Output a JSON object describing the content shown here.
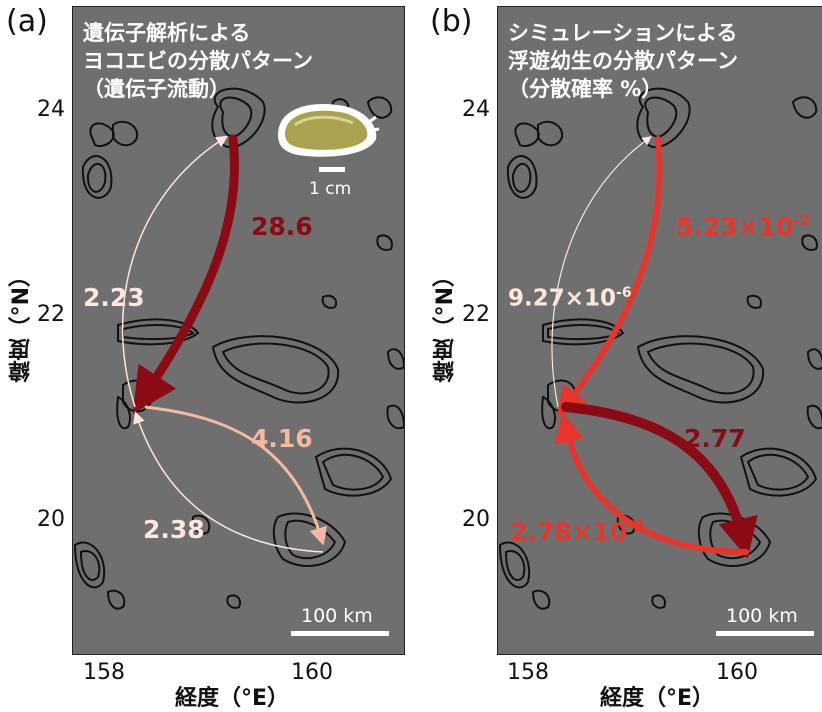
{
  "panel_a": {
    "letter": "(a)",
    "title_lines": [
      "遺伝子解析による",
      "ヨコエビの分散パターン",
      "（遺伝子流動）"
    ],
    "flows": {
      "north_to_south": "28.6",
      "south_to_north": "2.23",
      "mid_to_southeast": "4.16",
      "southeast_to_mid": "2.38"
    },
    "photo_scale_label": "1 cm",
    "scale_label": "100 km",
    "y_ticks": [
      "24",
      "22",
      "20"
    ],
    "x_ticks": [
      "158",
      "160"
    ],
    "ylabel": "緯度（°N）",
    "xlabel": "経度（°E）"
  },
  "panel_b": {
    "letter": "(b)",
    "title_lines": [
      "シミュレーションによる",
      "浮遊幼生の分散パターン",
      "（分散確率 %）"
    ],
    "flows": {
      "north_to_south_base": "5.23×10",
      "north_to_south_exp": "-2",
      "south_to_north_base": "9.27×10",
      "south_to_north_exp": "-6",
      "mid_to_southeast": "2.77",
      "southeast_to_mid_base": "2.78×10",
      "southeast_to_mid_exp": "-2"
    },
    "scale_label": "100 km",
    "y_ticks": [
      "24",
      "22",
      "20"
    ],
    "x_ticks": [
      "158",
      "160"
    ],
    "ylabel": "緯度（°N）",
    "xlabel": "経度（°E）"
  },
  "colors": {
    "map_bg": "#6f6f6f",
    "dark_red": "#8b0a14",
    "red": "#e8352b",
    "light_peach": "#f5b9a0",
    "near_white": "#fbe7dc"
  }
}
